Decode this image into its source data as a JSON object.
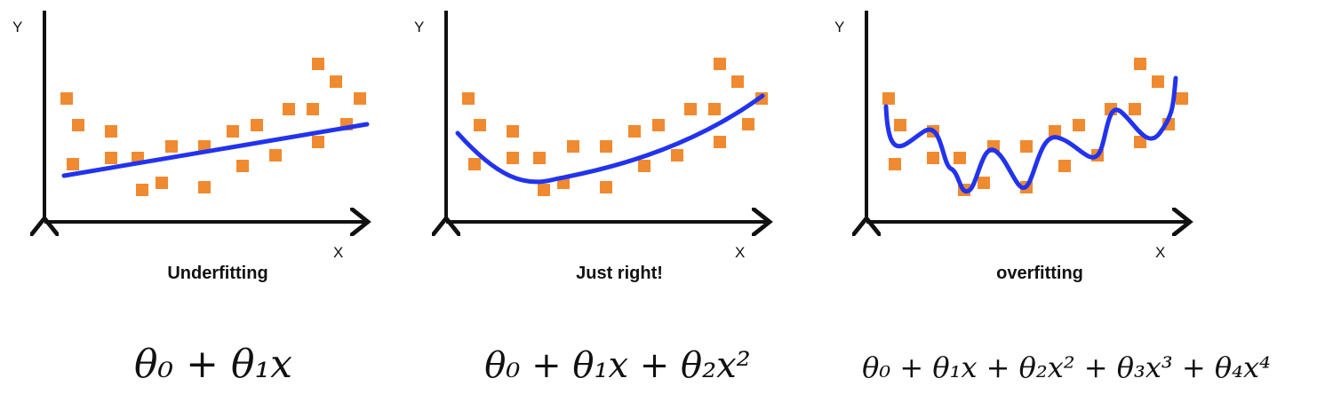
{
  "panels": [
    {
      "y_label": "Y",
      "x_label": "X",
      "title": "Underfitting",
      "formula": "θ₀ + θ₁x"
    },
    {
      "y_label": "Y",
      "x_label": "X",
      "title": "Just right!",
      "formula": "θ₀ + θ₁x + θ₂x²"
    },
    {
      "y_label": "Y",
      "x_label": "X",
      "title": "overfitting",
      "formula": "θ₀ + θ₁x + θ₂x² + θ₃x³ + θ₄x⁴"
    }
  ]
}
